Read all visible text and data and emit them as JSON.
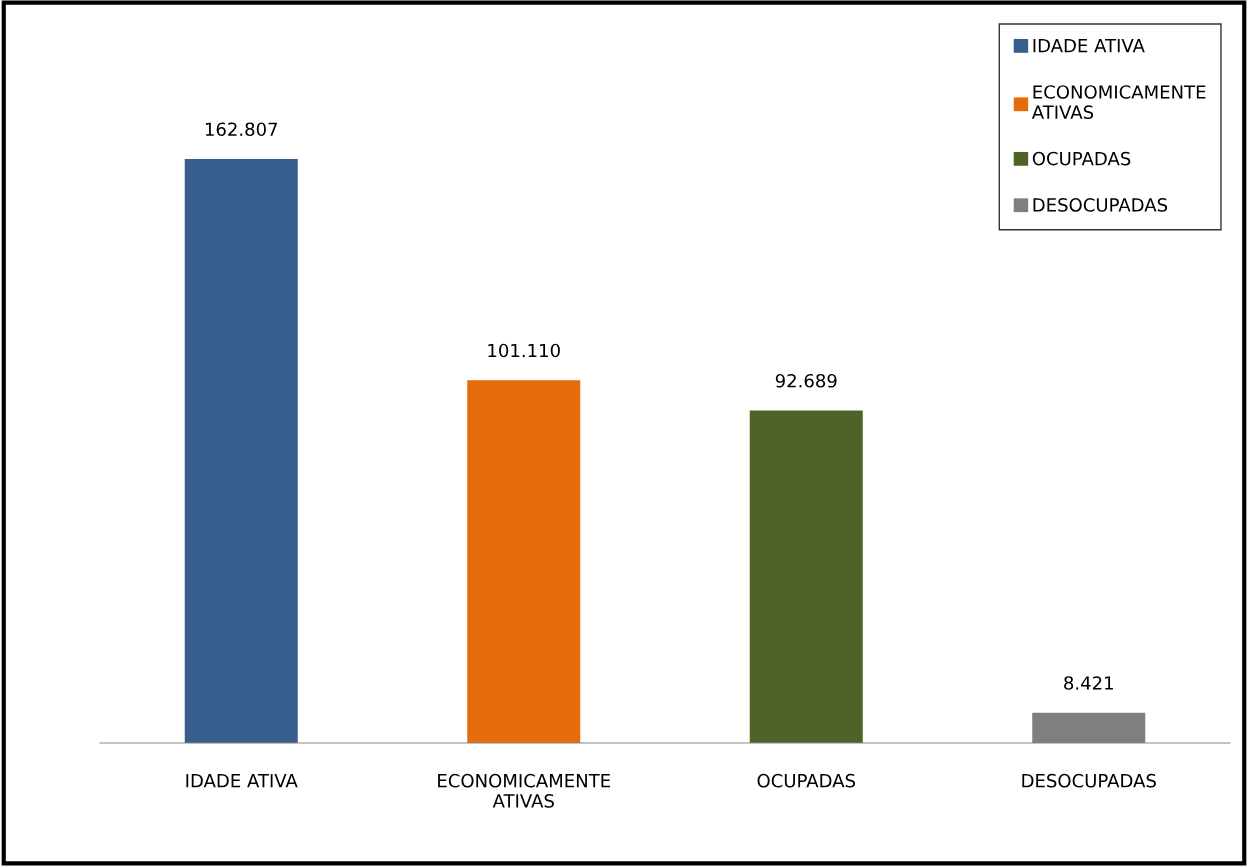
{
  "chart_data": {
    "type": "bar",
    "categories": [
      "IDADE ATIVA",
      "ECONOMICAMENTE ATIVAS",
      "OCUPADAS",
      "DESOCUPADAS"
    ],
    "series": [
      {
        "name": "IDADE ATIVA",
        "color": "#375e8c",
        "values": [
          162807,
          null,
          null,
          null
        ],
        "value_labels": [
          "162.807",
          null,
          null,
          null
        ]
      },
      {
        "name": "ECONOMICAMENTE ATIVAS",
        "color": "#e46c0a",
        "values": [
          null,
          101110,
          null,
          null
        ],
        "value_labels": [
          null,
          "101.110",
          null,
          null
        ]
      },
      {
        "name": "OCUPADAS",
        "color": "#4f6228",
        "values": [
          null,
          null,
          92689,
          null
        ],
        "value_labels": [
          null,
          null,
          "92.689",
          null
        ]
      },
      {
        "name": "DESOCUPADAS",
        "color": "#7f7f7f",
        "values": [
          null,
          null,
          null,
          8421
        ],
        "value_labels": [
          null,
          null,
          null,
          "8.421"
        ]
      }
    ],
    "legend": "top right",
    "grid": false
  }
}
